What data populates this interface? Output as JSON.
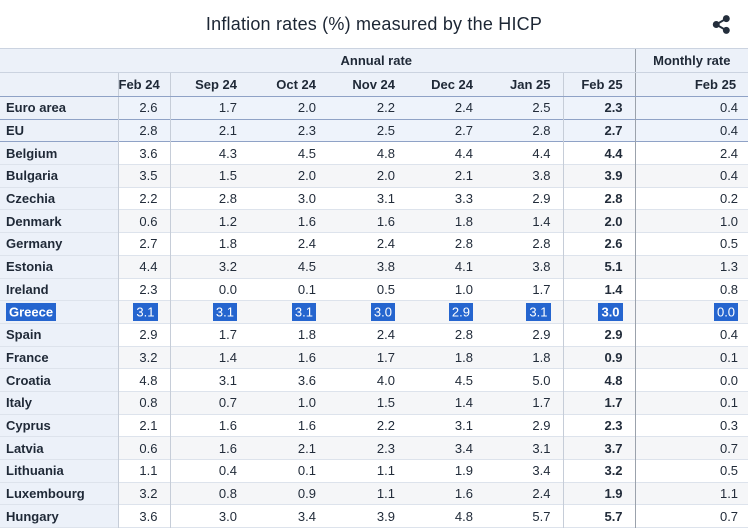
{
  "header": {
    "title": "Inflation rates (%) measured by the HICP",
    "share_icon": "share-icon"
  },
  "colors": {
    "selection": "#2565cf",
    "header_bg": "#ecf1f9",
    "stripe_bg": "#f5f6f8",
    "aggregate_bg": "#eef3fb",
    "icon": "#242e3c"
  },
  "table": {
    "col_groups": {
      "annual": "Annual rate",
      "monthly": "Monthly rate"
    },
    "columns": {
      "annual": [
        "Feb 24",
        "Sep 24",
        "Oct 24",
        "Nov 24",
        "Dec 24",
        "Jan 25",
        "Feb 25"
      ],
      "monthly": [
        "Feb 25"
      ]
    },
    "rows": [
      {
        "label": "Euro area",
        "aggregate": true,
        "selected": false,
        "annual": [
          "2.6",
          "1.7",
          "2.0",
          "2.2",
          "2.4",
          "2.5",
          "2.3"
        ],
        "monthly": "0.4"
      },
      {
        "label": "EU",
        "aggregate": true,
        "selected": false,
        "annual": [
          "2.8",
          "2.1",
          "2.3",
          "2.5",
          "2.7",
          "2.8",
          "2.7"
        ],
        "monthly": "0.4"
      },
      {
        "label": "Belgium",
        "aggregate": false,
        "selected": false,
        "annual": [
          "3.6",
          "4.3",
          "4.5",
          "4.8",
          "4.4",
          "4.4",
          "4.4"
        ],
        "monthly": "2.4"
      },
      {
        "label": "Bulgaria",
        "aggregate": false,
        "selected": false,
        "annual": [
          "3.5",
          "1.5",
          "2.0",
          "2.0",
          "2.1",
          "3.8",
          "3.9"
        ],
        "monthly": "0.4"
      },
      {
        "label": "Czechia",
        "aggregate": false,
        "selected": false,
        "annual": [
          "2.2",
          "2.8",
          "3.0",
          "3.1",
          "3.3",
          "2.9",
          "2.8"
        ],
        "monthly": "0.2"
      },
      {
        "label": "Denmark",
        "aggregate": false,
        "selected": false,
        "annual": [
          "0.6",
          "1.2",
          "1.6",
          "1.6",
          "1.8",
          "1.4",
          "2.0"
        ],
        "monthly": "1.0"
      },
      {
        "label": "Germany",
        "aggregate": false,
        "selected": false,
        "annual": [
          "2.7",
          "1.8",
          "2.4",
          "2.4",
          "2.8",
          "2.8",
          "2.6"
        ],
        "monthly": "0.5"
      },
      {
        "label": "Estonia",
        "aggregate": false,
        "selected": false,
        "annual": [
          "4.4",
          "3.2",
          "4.5",
          "3.8",
          "4.1",
          "3.8",
          "5.1"
        ],
        "monthly": "1.3"
      },
      {
        "label": "Ireland",
        "aggregate": false,
        "selected": false,
        "annual": [
          "2.3",
          "0.0",
          "0.1",
          "0.5",
          "1.0",
          "1.7",
          "1.4"
        ],
        "monthly": "0.8"
      },
      {
        "label": "Greece",
        "aggregate": false,
        "selected": true,
        "annual": [
          "3.1",
          "3.1",
          "3.1",
          "3.0",
          "2.9",
          "3.1",
          "3.0"
        ],
        "monthly": "0.0"
      },
      {
        "label": "Spain",
        "aggregate": false,
        "selected": false,
        "annual": [
          "2.9",
          "1.7",
          "1.8",
          "2.4",
          "2.8",
          "2.9",
          "2.9"
        ],
        "monthly": "0.4"
      },
      {
        "label": "France",
        "aggregate": false,
        "selected": false,
        "annual": [
          "3.2",
          "1.4",
          "1.6",
          "1.7",
          "1.8",
          "1.8",
          "0.9"
        ],
        "monthly": "0.1"
      },
      {
        "label": "Croatia",
        "aggregate": false,
        "selected": false,
        "annual": [
          "4.8",
          "3.1",
          "3.6",
          "4.0",
          "4.5",
          "5.0",
          "4.8"
        ],
        "monthly": "0.0"
      },
      {
        "label": "Italy",
        "aggregate": false,
        "selected": false,
        "annual": [
          "0.8",
          "0.7",
          "1.0",
          "1.5",
          "1.4",
          "1.7",
          "1.7"
        ],
        "monthly": "0.1"
      },
      {
        "label": "Cyprus",
        "aggregate": false,
        "selected": false,
        "annual": [
          "2.1",
          "1.6",
          "1.6",
          "2.2",
          "3.1",
          "2.9",
          "2.3"
        ],
        "monthly": "0.3"
      },
      {
        "label": "Latvia",
        "aggregate": false,
        "selected": false,
        "annual": [
          "0.6",
          "1.6",
          "2.1",
          "2.3",
          "3.4",
          "3.1",
          "3.7"
        ],
        "monthly": "0.7"
      },
      {
        "label": "Lithuania",
        "aggregate": false,
        "selected": false,
        "annual": [
          "1.1",
          "0.4",
          "0.1",
          "1.1",
          "1.9",
          "3.4",
          "3.2"
        ],
        "monthly": "0.5"
      },
      {
        "label": "Luxembourg",
        "aggregate": false,
        "selected": false,
        "annual": [
          "3.2",
          "0.8",
          "0.9",
          "1.1",
          "1.6",
          "2.4",
          "1.9"
        ],
        "monthly": "1.1"
      },
      {
        "label": "Hungary",
        "aggregate": false,
        "selected": false,
        "annual": [
          "3.6",
          "3.0",
          "3.4",
          "3.9",
          "4.8",
          "5.7",
          "5.7"
        ],
        "monthly": "0.7"
      }
    ]
  }
}
